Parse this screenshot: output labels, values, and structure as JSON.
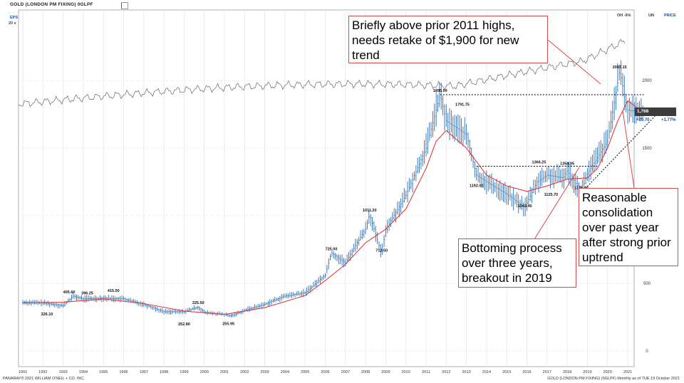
{
  "header": {
    "title": "GOLD (LONDON PM FIXING)   0GLPF",
    "eps_label": "EPS",
    "eps_sub": "20 x",
    "oh_label": "OH -9%",
    "un_label": "UN",
    "price_label": "PRICE"
  },
  "footer": {
    "left": "PANARAY®  2021 WILLIAM O'NEIL + CO. INC.",
    "right": "GOLD (LONDON PM FIXING) (0GLPF) Monthly as of TUE 19 October 2021"
  },
  "last_price": {
    "value": "1,768",
    "change": "+30.70",
    "pct": "+1.77%"
  },
  "callouts": {
    "top": "Briefly above prior 2011 highs, needs retake of $1,900 for new trend",
    "bottom": "Bottoming process over three years, breakout in 2019",
    "right": "Reasonable consolidation over past year after strong prior uptrend"
  },
  "colors": {
    "bar": "#2e6db5",
    "ma": "#e23c3c",
    "rs": "#666666",
    "callout_border": "#d84a4a"
  },
  "chart_data": {
    "type": "line",
    "y_scale": "linear",
    "ylim": [
      0,
      2200
    ],
    "y_ticks": [
      0,
      500,
      1000,
      1500,
      2000
    ],
    "x_ticks": [
      "1991",
      "1992",
      "1993",
      "1994",
      "1995",
      "1996",
      "1997",
      "1998",
      "1999",
      "2000",
      "2001",
      "2002",
      "2003",
      "2004",
      "2005",
      "2006",
      "2007",
      "2008",
      "2009",
      "2010",
      "2011",
      "2012",
      "2013",
      "2014",
      "2015",
      "2016",
      "2017",
      "2018",
      "2019",
      "2020",
      "2021"
    ],
    "price_series": {
      "x": [
        1991,
        1992,
        1993,
        1993.5,
        1994,
        1995,
        1996,
        1997,
        1998,
        1999,
        1999.7,
        2000,
        2001,
        2001.3,
        2002,
        2003,
        2004,
        2005,
        2006,
        2006.3,
        2007,
        2007.5,
        2008,
        2008.2,
        2008.8,
        2009,
        2010,
        2011,
        2011.7,
        2012,
        2012.5,
        2013,
        2013.5,
        2014,
        2015,
        2015.9,
        2016.5,
        2017,
        2017.8,
        2018,
        2018.7,
        2019,
        2019.5,
        2020,
        2020.6,
        2021,
        2021.8
      ],
      "y": [
        360,
        355,
        335,
        405,
        385,
        390,
        385,
        345,
        290,
        290,
        325,
        285,
        270,
        258,
        300,
        345,
        405,
        430,
        560,
        725,
        650,
        780,
        900,
        1011,
        713,
        900,
        1150,
        1500,
        1895,
        1700,
        1650,
        1600,
        1300,
        1250,
        1160,
        1060,
        1250,
        1300,
        1280,
        1330,
        1180,
        1310,
        1430,
        1550,
        2067,
        1780,
        1768
      ]
    },
    "ma_series": {
      "x": [
        1991,
        1993,
        1995,
        1997,
        1999,
        2001,
        2003,
        2005,
        2006,
        2007,
        2008,
        2009,
        2010,
        2011,
        2011.5,
        2012,
        2013,
        2014,
        2015,
        2016,
        2017,
        2018,
        2019,
        2019.5,
        2020,
        2020.5,
        2021,
        2021.8
      ],
      "y": [
        355,
        360,
        385,
        350,
        295,
        270,
        320,
        410,
        520,
        640,
        800,
        900,
        1050,
        1350,
        1550,
        1630,
        1500,
        1300,
        1220,
        1180,
        1220,
        1270,
        1280,
        1350,
        1500,
        1700,
        1850,
        1760
      ]
    },
    "annotations": [
      {
        "text": "405.60",
        "x": 1993.3,
        "y": 405.6
      },
      {
        "text": "396.25",
        "x": 1994.2,
        "y": 396.25
      },
      {
        "text": "415.50",
        "x": 1995.5,
        "y": 415.5
      },
      {
        "text": "326.10",
        "x": 1992.2,
        "y": 326.1
      },
      {
        "text": "325.50",
        "x": 1999.7,
        "y": 325.5
      },
      {
        "text": "252.80",
        "x": 1999.0,
        "y": 252.8
      },
      {
        "text": "255.95",
        "x": 2001.2,
        "y": 255.95
      },
      {
        "text": "725.00",
        "x": 2006.3,
        "y": 725.0
      },
      {
        "text": "1011.20",
        "x": 2008.2,
        "y": 1011.2
      },
      {
        "text": "712.50",
        "x": 2008.8,
        "y": 712.5
      },
      {
        "text": "1895.00",
        "x": 2011.7,
        "y": 1895.0
      },
      {
        "text": "1791.75",
        "x": 2012.8,
        "y": 1791.75
      },
      {
        "text": "1192.00",
        "x": 2013.5,
        "y": 1192.0
      },
      {
        "text": "1366.25",
        "x": 2016.6,
        "y": 1366.25
      },
      {
        "text": "1354.95",
        "x": 2018.0,
        "y": 1354.95
      },
      {
        "text": "1043.40",
        "x": 2015.9,
        "y": 1043.4
      },
      {
        "text": "1125.70",
        "x": 2017.2,
        "y": 1125.7
      },
      {
        "text": "1176.40",
        "x": 2018.7,
        "y": 1176.4
      },
      {
        "text": "2067.15",
        "x": 2020.6,
        "y": 2067.15
      }
    ],
    "xlim": [
      1991,
      2023
    ]
  }
}
